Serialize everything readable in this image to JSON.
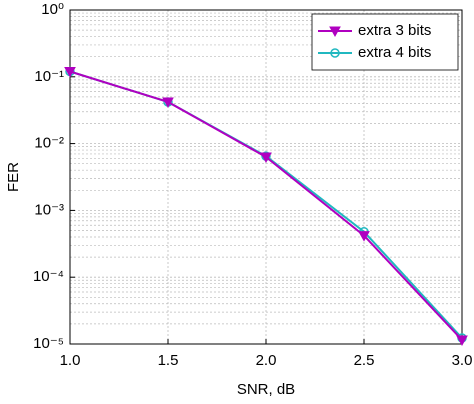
{
  "chart_data": {
    "type": "line",
    "x_label": "SNR, dB",
    "y_label": "FER",
    "x": [
      1.0,
      1.5,
      2.0,
      2.5,
      3.0
    ],
    "series": [
      {
        "name": "extra 3 bits",
        "color": "#b000c0",
        "marker": "triangle-down",
        "values": [
          0.12,
          0.042,
          0.0063,
          0.00042,
          1.15e-05
        ]
      },
      {
        "name": "extra 4 bits",
        "color": "#20b8c0",
        "marker": "circle",
        "values": [
          0.12,
          0.042,
          0.0065,
          0.00048,
          1.23e-05
        ]
      }
    ],
    "xlim": [
      1.0,
      3.0
    ],
    "xticks": [
      {
        "value": 1.0,
        "label": "1.0"
      },
      1.5,
      {
        "value": 2.0,
        "label": "2.0"
      },
      2.5,
      {
        "value": 3.0,
        "label": "3.0"
      }
    ],
    "ylim": [
      1e-05,
      1
    ],
    "yticks": [
      {
        "value": 1e-05,
        "label": "10⁻⁵"
      },
      {
        "value": 0.0001,
        "label": "10⁻⁴"
      },
      {
        "value": 0.001,
        "label": "10⁻³"
      },
      {
        "value": 0.01,
        "label": "10⁻²"
      },
      {
        "value": 0.1,
        "label": "10⁻¹"
      },
      {
        "value": 1,
        "label": "10⁰"
      }
    ],
    "y_log": true,
    "grid": true,
    "minor_grid": true,
    "legend": "upper right"
  }
}
